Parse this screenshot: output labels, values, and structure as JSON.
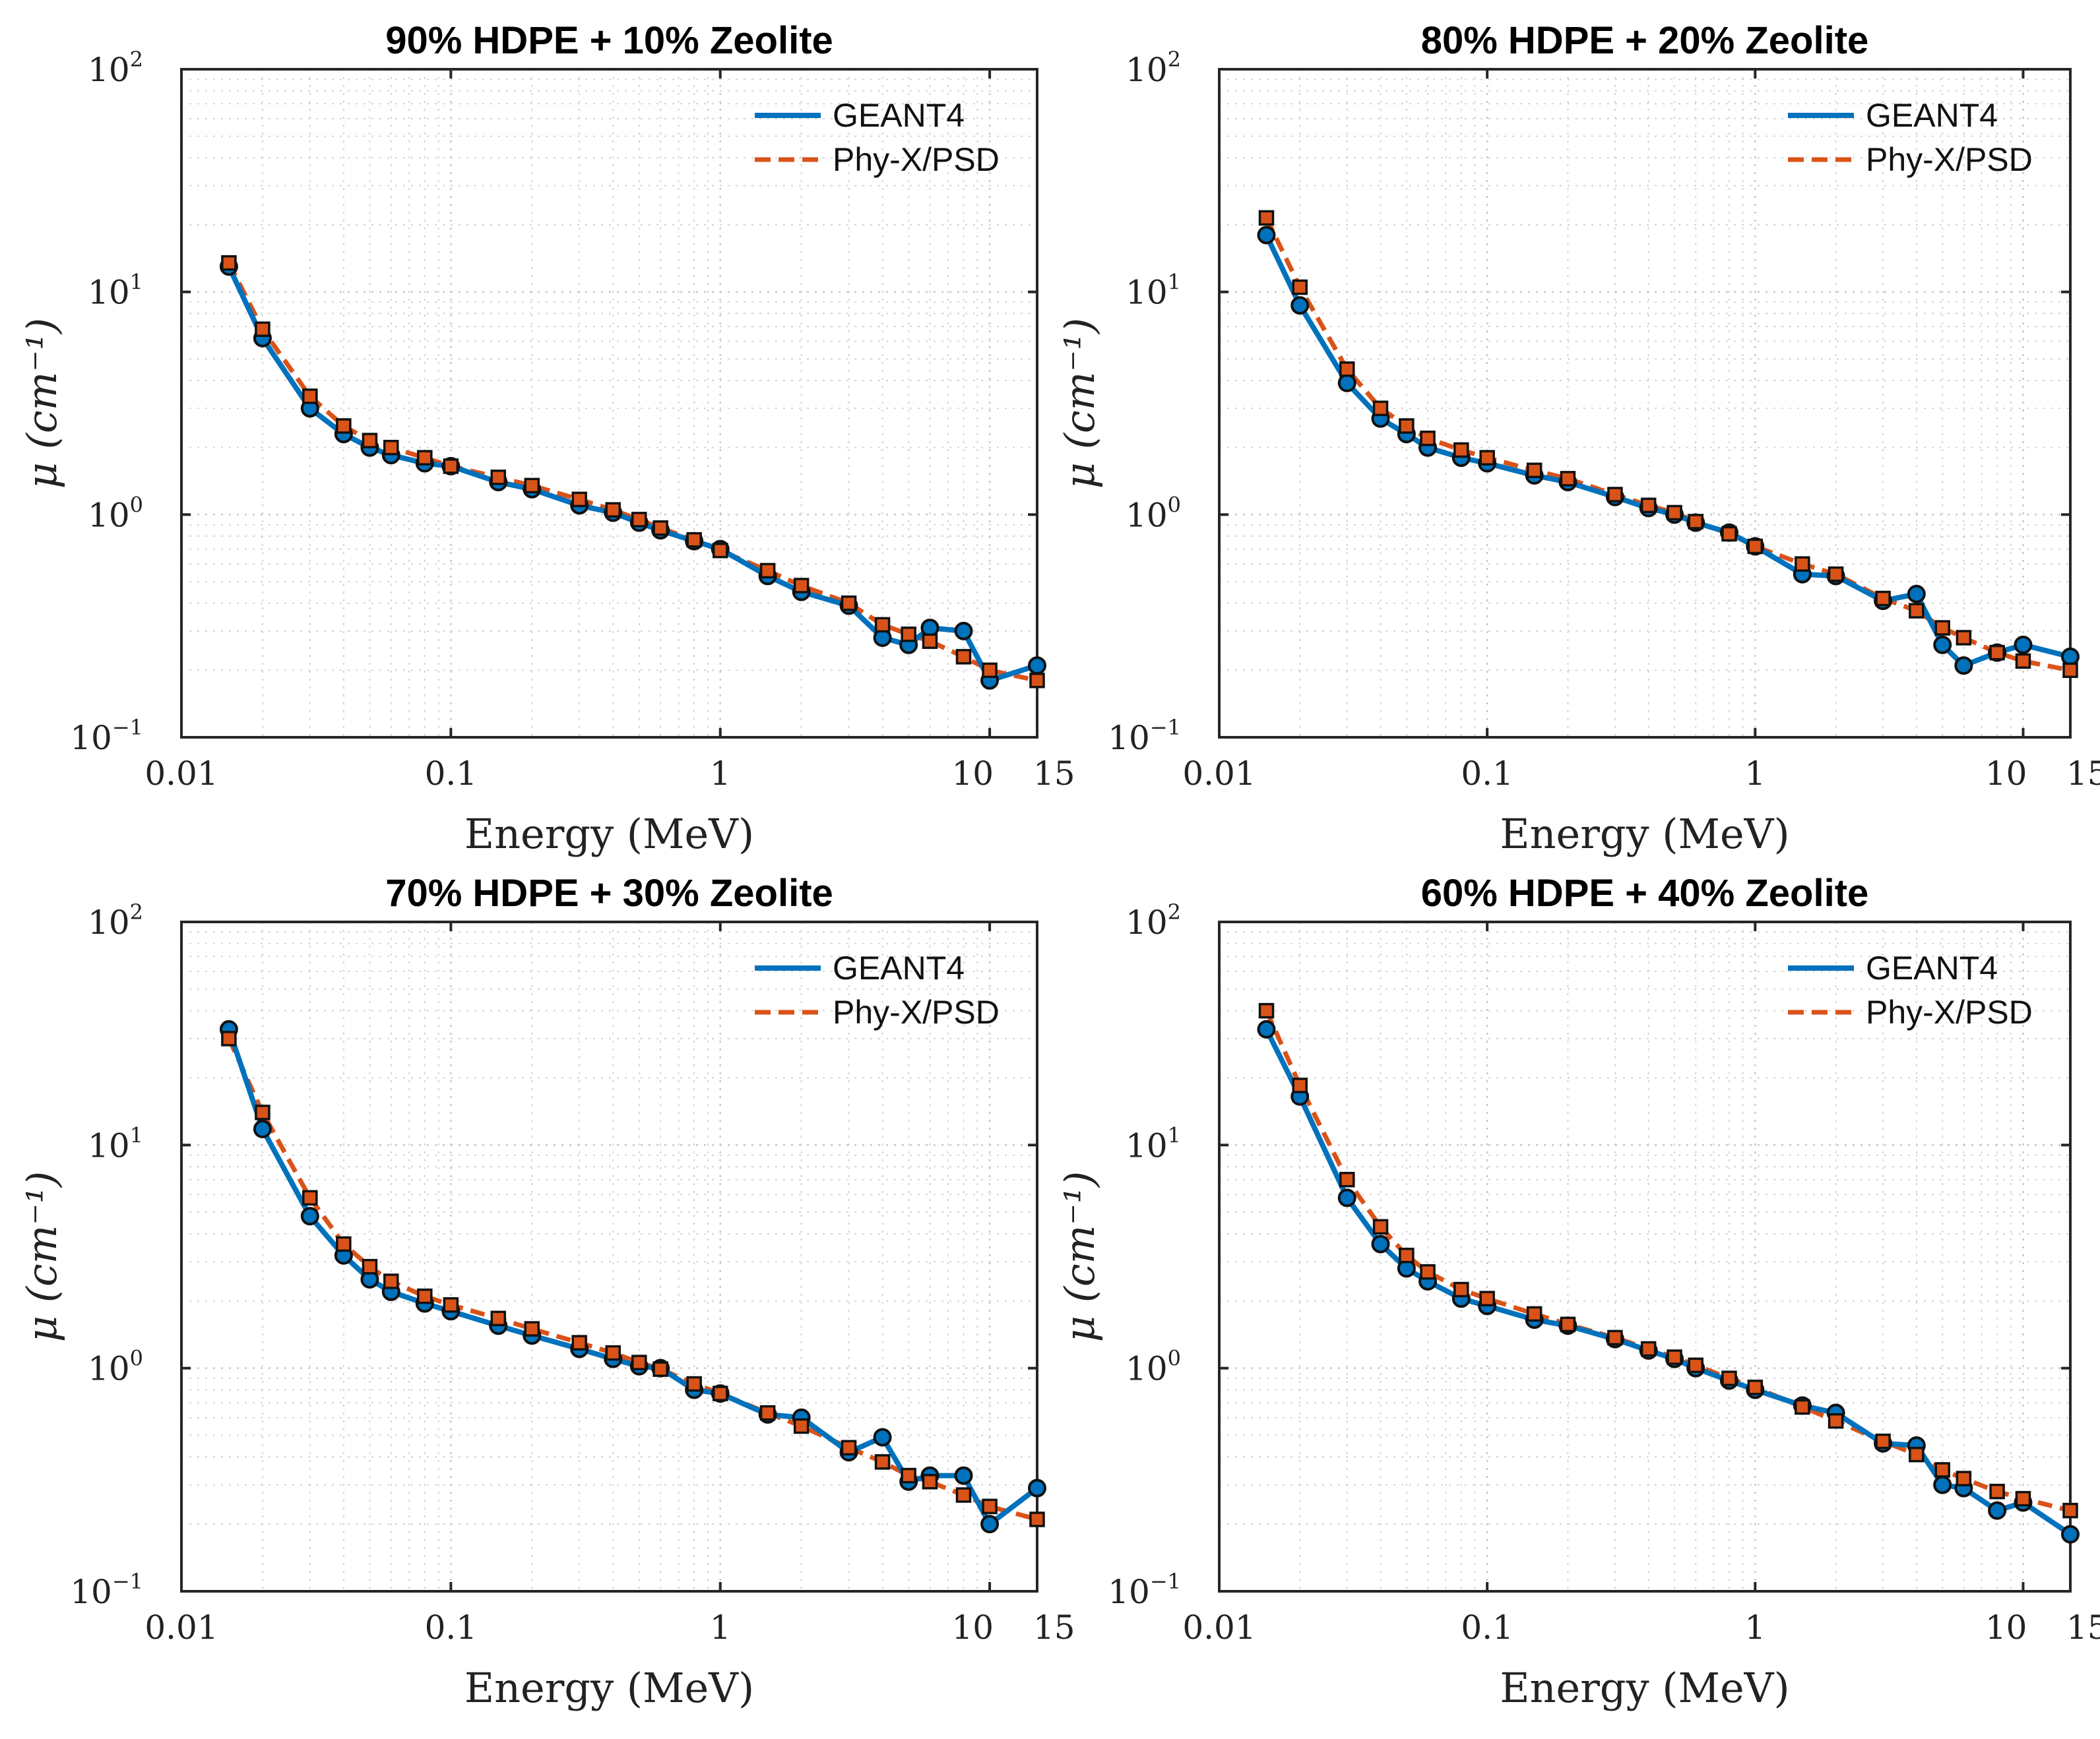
{
  "colors": {
    "geant4": "#0072BD",
    "phyx": "#D95319",
    "axis": "#262626"
  },
  "chart_data": [
    {
      "type": "line",
      "title": "90% HDPE + 10% Zeolite",
      "xlabel": "Energy (MeV)",
      "ylabel": "μ (cm⁻¹)",
      "xscale": "log",
      "yscale": "log",
      "xlim": [
        0.01,
        15
      ],
      "ylim": [
        0.1,
        100
      ],
      "xticks": [
        "0.01",
        "0.1",
        "1",
        "10",
        "15"
      ],
      "yticks": [
        {
          "base": "10",
          "exp": "−1"
        },
        {
          "base": "10",
          "exp": "0"
        },
        {
          "base": "10",
          "exp": "1"
        },
        {
          "base": "10",
          "exp": "2"
        }
      ],
      "legend": {
        "position": "top-right",
        "entries": [
          "GEANT4",
          "Phy-X/PSD"
        ]
      },
      "x": [
        0.015,
        0.02,
        0.03,
        0.04,
        0.05,
        0.06,
        0.08,
        0.1,
        0.15,
        0.2,
        0.3,
        0.4,
        0.5,
        0.6,
        0.8,
        1,
        1.5,
        2,
        3,
        4,
        5,
        6,
        8,
        10,
        15
      ],
      "series": [
        {
          "name": "GEANT4",
          "values": [
            13.0,
            6.2,
            3.0,
            2.3,
            2.0,
            1.85,
            1.7,
            1.65,
            1.4,
            1.3,
            1.1,
            1.02,
            0.92,
            0.85,
            0.76,
            0.7,
            0.53,
            0.45,
            0.39,
            0.28,
            0.26,
            0.31,
            0.3,
            0.18,
            0.21
          ]
        },
        {
          "name": "Phy-X/PSD",
          "values": [
            13.5,
            6.8,
            3.4,
            2.5,
            2.15,
            2.0,
            1.8,
            1.65,
            1.47,
            1.35,
            1.17,
            1.05,
            0.95,
            0.87,
            0.77,
            0.69,
            0.56,
            0.48,
            0.4,
            0.32,
            0.29,
            0.27,
            0.23,
            0.2,
            0.18
          ]
        }
      ]
    },
    {
      "type": "line",
      "title": "80% HDPE + 20% Zeolite",
      "xlabel": "Energy (MeV)",
      "ylabel": "μ (cm⁻¹)",
      "xscale": "log",
      "yscale": "log",
      "xlim": [
        0.01,
        15
      ],
      "ylim": [
        0.1,
        100
      ],
      "xticks": [
        "0.01",
        "0.1",
        "1",
        "10",
        "15"
      ],
      "yticks": [
        {
          "base": "10",
          "exp": "−1"
        },
        {
          "base": "10",
          "exp": "0"
        },
        {
          "base": "10",
          "exp": "1"
        },
        {
          "base": "10",
          "exp": "2"
        }
      ],
      "legend": {
        "position": "top-right",
        "entries": [
          "GEANT4",
          "Phy-X/PSD"
        ]
      },
      "x": [
        0.015,
        0.02,
        0.03,
        0.04,
        0.05,
        0.06,
        0.08,
        0.1,
        0.15,
        0.2,
        0.3,
        0.4,
        0.5,
        0.6,
        0.8,
        1,
        1.5,
        2,
        3,
        4,
        5,
        6,
        8,
        10,
        15
      ],
      "series": [
        {
          "name": "GEANT4",
          "values": [
            18.0,
            8.7,
            3.9,
            2.7,
            2.3,
            2.0,
            1.8,
            1.7,
            1.5,
            1.4,
            1.2,
            1.07,
            1.0,
            0.92,
            0.83,
            0.72,
            0.54,
            0.53,
            0.41,
            0.44,
            0.26,
            0.21,
            0.24,
            0.26,
            0.23
          ]
        },
        {
          "name": "Phy-X/PSD",
          "values": [
            21.5,
            10.5,
            4.5,
            3.0,
            2.5,
            2.2,
            1.95,
            1.8,
            1.58,
            1.45,
            1.23,
            1.1,
            1.02,
            0.93,
            0.82,
            0.72,
            0.6,
            0.54,
            0.42,
            0.37,
            0.31,
            0.28,
            0.24,
            0.22,
            0.2
          ]
        }
      ]
    },
    {
      "type": "line",
      "title": "70% HDPE + 30% Zeolite",
      "xlabel": "Energy (MeV)",
      "ylabel": "μ (cm⁻¹)",
      "xscale": "log",
      "yscale": "log",
      "xlim": [
        0.01,
        15
      ],
      "ylim": [
        0.1,
        100
      ],
      "xticks": [
        "0.01",
        "0.1",
        "1",
        "10",
        "15"
      ],
      "yticks": [
        {
          "base": "10",
          "exp": "−1"
        },
        {
          "base": "10",
          "exp": "0"
        },
        {
          "base": "10",
          "exp": "1"
        },
        {
          "base": "10",
          "exp": "2"
        }
      ],
      "legend": {
        "position": "top-right",
        "entries": [
          "GEANT4",
          "Phy-X/PSD"
        ]
      },
      "x": [
        0.015,
        0.02,
        0.03,
        0.04,
        0.05,
        0.06,
        0.08,
        0.1,
        0.15,
        0.2,
        0.3,
        0.4,
        0.5,
        0.6,
        0.8,
        1,
        1.5,
        2,
        3,
        4,
        5,
        6,
        8,
        10,
        15
      ],
      "series": [
        {
          "name": "GEANT4",
          "values": [
            33.0,
            11.8,
            4.8,
            3.2,
            2.5,
            2.2,
            1.95,
            1.8,
            1.55,
            1.4,
            1.22,
            1.1,
            1.02,
            1.0,
            0.8,
            0.77,
            0.62,
            0.6,
            0.42,
            0.49,
            0.31,
            0.33,
            0.33,
            0.2,
            0.29
          ]
        },
        {
          "name": "Phy-X/PSD",
          "values": [
            30.0,
            14.0,
            5.8,
            3.6,
            2.85,
            2.45,
            2.1,
            1.92,
            1.67,
            1.5,
            1.3,
            1.17,
            1.06,
            0.99,
            0.85,
            0.77,
            0.63,
            0.55,
            0.44,
            0.38,
            0.33,
            0.31,
            0.27,
            0.24,
            0.21
          ]
        }
      ]
    },
    {
      "type": "line",
      "title": "60% HDPE + 40% Zeolite",
      "xlabel": "Energy (MeV)",
      "ylabel": "μ (cm⁻¹)",
      "xscale": "log",
      "yscale": "log",
      "xlim": [
        0.01,
        15
      ],
      "ylim": [
        0.1,
        100
      ],
      "xticks": [
        "0.01",
        "0.1",
        "1",
        "10",
        "15"
      ],
      "yticks": [
        {
          "base": "10",
          "exp": "−1"
        },
        {
          "base": "10",
          "exp": "0"
        },
        {
          "base": "10",
          "exp": "1"
        },
        {
          "base": "10",
          "exp": "2"
        }
      ],
      "legend": {
        "position": "top-right",
        "entries": [
          "GEANT4",
          "Phy-X/PSD"
        ]
      },
      "x": [
        0.015,
        0.02,
        0.03,
        0.04,
        0.05,
        0.06,
        0.08,
        0.1,
        0.15,
        0.2,
        0.3,
        0.4,
        0.5,
        0.6,
        0.8,
        1,
        1.5,
        2,
        3,
        4,
        5,
        6,
        8,
        10,
        15
      ],
      "series": [
        {
          "name": "GEANT4",
          "values": [
            33.0,
            16.5,
            5.8,
            3.6,
            2.8,
            2.45,
            2.05,
            1.9,
            1.65,
            1.55,
            1.35,
            1.2,
            1.1,
            1.0,
            0.88,
            0.8,
            0.68,
            0.63,
            0.46,
            0.45,
            0.3,
            0.29,
            0.23,
            0.25,
            0.18
          ]
        },
        {
          "name": "Phy-X/PSD",
          "values": [
            40.0,
            18.5,
            7.0,
            4.3,
            3.2,
            2.7,
            2.25,
            2.05,
            1.75,
            1.57,
            1.37,
            1.22,
            1.12,
            1.03,
            0.9,
            0.82,
            0.67,
            0.58,
            0.47,
            0.41,
            0.35,
            0.32,
            0.28,
            0.26,
            0.23
          ]
        }
      ]
    }
  ]
}
